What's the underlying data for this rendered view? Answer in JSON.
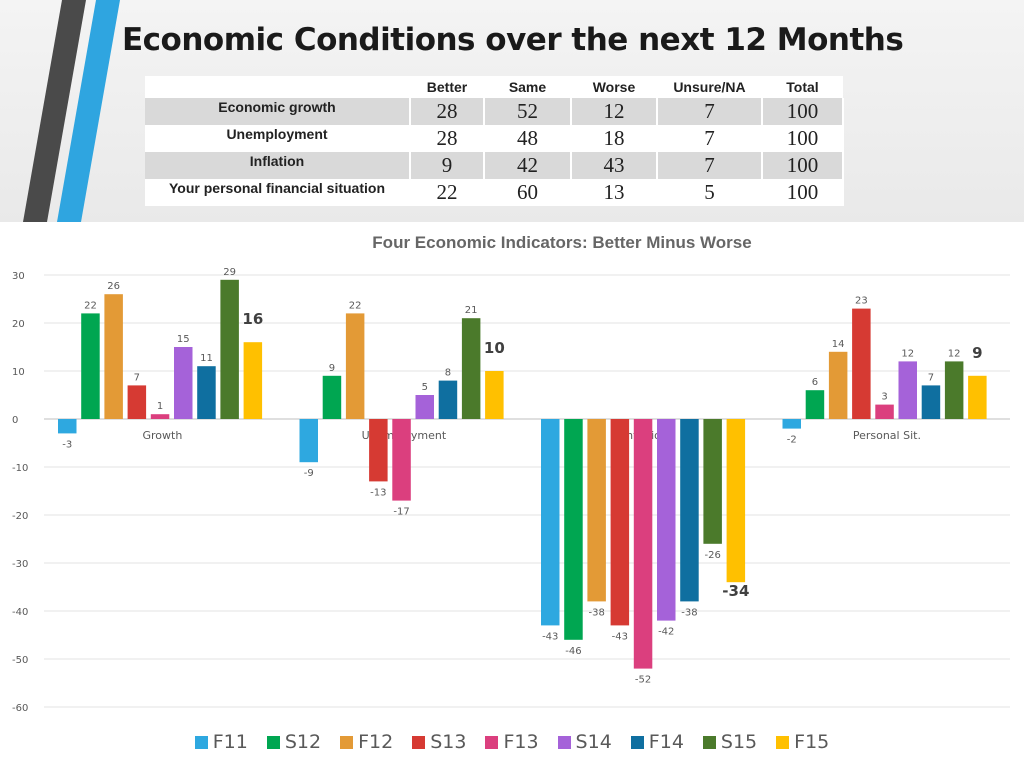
{
  "slide": {
    "title": "Economic Conditions over the next 12 Months"
  },
  "table": {
    "headers": [
      "",
      "Better",
      "Same",
      "Worse",
      "Unsure/NA",
      "Total"
    ],
    "rows": [
      {
        "label": "Economic growth",
        "values": [
          "28",
          "52",
          "12",
          "7",
          "100"
        ]
      },
      {
        "label": "Unemployment",
        "values": [
          "28",
          "48",
          "18",
          "7",
          "100"
        ]
      },
      {
        "label": "Inflation",
        "values": [
          "9",
          "42",
          "43",
          "7",
          "100"
        ]
      },
      {
        "label": "Your personal financial situation",
        "values": [
          "22",
          "60",
          "13",
          "5",
          "100"
        ]
      }
    ]
  },
  "colors": {
    "stripe_dark": "#4a4a4a",
    "stripe_blue": "#2fa5e0"
  },
  "chart_data": {
    "type": "bar",
    "title": "Four Economic Indicators: Better Minus Worse",
    "xlabel": "",
    "ylabel": "",
    "ylim": [
      -60,
      30
    ],
    "yticks": [
      30,
      20,
      10,
      0,
      -10,
      -20,
      -30,
      -40,
      -50,
      -60
    ],
    "grid": true,
    "legend_position": "bottom",
    "categories": [
      "Growth",
      "Unemployment",
      "Inflation",
      "Personal Sit."
    ],
    "series": [
      {
        "name": "F11",
        "color": "#2ea8e0",
        "values": [
          -3,
          -9,
          -43,
          -2
        ]
      },
      {
        "name": "S12",
        "color": "#00a651",
        "values": [
          22,
          9,
          -46,
          6
        ]
      },
      {
        "name": "F12",
        "color": "#e39a36",
        "values": [
          26,
          22,
          -38,
          14
        ]
      },
      {
        "name": "S13",
        "color": "#d63a33",
        "values": [
          7,
          -13,
          -43,
          23
        ]
      },
      {
        "name": "F13",
        "color": "#db3f7e",
        "values": [
          1,
          -17,
          -52,
          3
        ]
      },
      {
        "name": "S14",
        "color": "#a562d9",
        "values": [
          15,
          5,
          -42,
          12
        ]
      },
      {
        "name": "F14",
        "color": "#0f6fa0",
        "values": [
          11,
          8,
          -38,
          7
        ]
      },
      {
        "name": "S15",
        "color": "#4b7a2b",
        "values": [
          29,
          21,
          -26,
          12
        ]
      },
      {
        "name": "F15",
        "color": "#ffc000",
        "values": [
          16,
          10,
          -34,
          9
        ]
      }
    ]
  }
}
